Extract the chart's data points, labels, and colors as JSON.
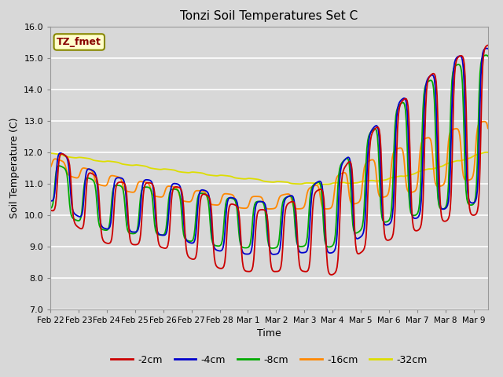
{
  "title": "Tonzi Soil Temperatures Set C",
  "xlabel": "Time",
  "ylabel": "Soil Temperature (C)",
  "ylim": [
    7.0,
    16.0
  ],
  "yticks": [
    7.0,
    8.0,
    9.0,
    10.0,
    11.0,
    12.0,
    13.0,
    14.0,
    15.0,
    16.0
  ],
  "bg_color": "#d8d8d8",
  "plot_bg_color": "#d8d8d8",
  "grid_color": "#ffffff",
  "legend_labels": [
    "-2cm",
    "-4cm",
    "-8cm",
    "-16cm",
    "-32cm"
  ],
  "line_colors": [
    "#cc0000",
    "#0000cc",
    "#00aa00",
    "#ff8800",
    "#dddd00"
  ],
  "annotation_text": "TZ_fmet",
  "annotation_color": "#880000",
  "annotation_bg": "#ffffcc",
  "annotation_border": "#888800",
  "xtick_labels": [
    "Feb 22",
    "Feb 23",
    "Feb 24",
    "Feb 25",
    "Feb 26",
    "Feb 27",
    "Feb 28",
    "Mar 1",
    "Mar 2",
    "Mar 3",
    "Mar 4",
    "Mar 5",
    "Mar 6",
    "Mar 7",
    "Mar 8",
    "Mar 9"
  ],
  "n_days": 15.5,
  "n_points": 500,
  "kx": [
    0,
    1,
    2,
    3,
    4,
    5,
    6,
    7,
    8,
    9,
    10,
    11,
    12,
    13,
    14,
    15.5
  ],
  "ky_trend_2": [
    11.15,
    10.6,
    10.1,
    10.05,
    9.95,
    9.7,
    9.4,
    9.2,
    9.2,
    9.4,
    9.6,
    10.5,
    11.2,
    11.8,
    12.3,
    12.7
  ],
  "ky_trend_4": [
    11.3,
    10.8,
    10.4,
    10.3,
    10.2,
    10.0,
    9.75,
    9.6,
    9.6,
    9.8,
    10.1,
    10.8,
    11.5,
    12.0,
    12.5,
    12.8
  ],
  "ky_trend_8": [
    10.95,
    10.55,
    10.25,
    10.15,
    10.1,
    9.95,
    9.8,
    9.7,
    9.7,
    9.9,
    10.2,
    10.9,
    11.5,
    12.0,
    12.4,
    12.7
  ],
  "ky_trend_16": [
    11.65,
    11.35,
    11.1,
    10.9,
    10.75,
    10.6,
    10.5,
    10.4,
    10.4,
    10.5,
    10.7,
    11.0,
    11.3,
    11.55,
    11.8,
    12.1
  ],
  "ky_trend_32": [
    11.95,
    11.82,
    11.7,
    11.58,
    11.45,
    11.35,
    11.25,
    11.15,
    11.05,
    11.0,
    11.0,
    11.05,
    11.15,
    11.35,
    11.6,
    12.0
  ],
  "amp_2": [
    1.0,
    1.0,
    1.0,
    1.0,
    1.0,
    1.1,
    1.1,
    1.0,
    1.0,
    1.2,
    1.5,
    1.7,
    2.0,
    2.3,
    2.5,
    2.7
  ],
  "amp_4": [
    0.85,
    0.85,
    0.85,
    0.85,
    0.85,
    0.9,
    0.9,
    0.85,
    0.85,
    1.0,
    1.3,
    1.5,
    1.8,
    2.1,
    2.3,
    2.5
  ],
  "amp_8": [
    0.75,
    0.75,
    0.75,
    0.75,
    0.75,
    0.8,
    0.8,
    0.75,
    0.75,
    0.9,
    1.2,
    1.4,
    1.7,
    2.0,
    2.2,
    2.4
  ],
  "amp_16": [
    0.2,
    0.2,
    0.2,
    0.2,
    0.2,
    0.2,
    0.2,
    0.2,
    0.2,
    0.3,
    0.5,
    0.6,
    0.7,
    0.8,
    0.85,
    0.9
  ],
  "amp_32": [
    0.02,
    0.02,
    0.02,
    0.02,
    0.02,
    0.02,
    0.02,
    0.02,
    0.02,
    0.02,
    0.02,
    0.02,
    0.02,
    0.02,
    0.02,
    0.02
  ],
  "phase_2": -1.5708,
  "phase_4": -1.2708,
  "phase_8": -0.9708,
  "phase_16": -0.3708,
  "phase_32": 0.2
}
